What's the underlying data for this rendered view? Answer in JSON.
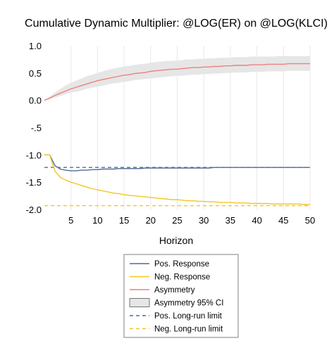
{
  "chart_data": {
    "type": "line",
    "title": "Cumulative Dynamic Multiplier: @LOG(ER) on @LOG(KLCI)",
    "xlabel": "Horizon",
    "ylabel": "",
    "xlim": [
      0,
      50
    ],
    "ylim": [
      -2.0,
      1.0
    ],
    "x_ticks": [
      5,
      10,
      15,
      20,
      25,
      30,
      35,
      40,
      45,
      50
    ],
    "y_ticks": [
      1.0,
      0.5,
      0.0,
      -0.5,
      -1.0,
      -1.5,
      -2.0
    ],
    "x_tick_labels": [
      "5",
      "10",
      "15",
      "20",
      "25",
      "30",
      "35",
      "40",
      "45",
      "50"
    ],
    "y_tick_labels": [
      "1.0",
      "0.5",
      "0.0",
      "-.5",
      "-1.0",
      "-1.5",
      "-2.0"
    ],
    "grid": "vertical",
    "legend": "bottom",
    "x": [
      0,
      1,
      2,
      3,
      4,
      5,
      6,
      7,
      8,
      9,
      10,
      11,
      12,
      13,
      14,
      15,
      16,
      17,
      18,
      19,
      20,
      21,
      22,
      23,
      24,
      25,
      26,
      27,
      28,
      29,
      30,
      31,
      32,
      33,
      34,
      35,
      36,
      37,
      38,
      39,
      40,
      41,
      42,
      43,
      44,
      45,
      46,
      47,
      48,
      49,
      50
    ],
    "series": [
      {
        "name": "Pos. Response",
        "kind": "line",
        "color": "#4f6c93",
        "values": [
          -1.0,
          -1.0,
          -1.2,
          -1.26,
          -1.28,
          -1.29,
          -1.29,
          -1.28,
          -1.28,
          -1.27,
          -1.27,
          -1.26,
          -1.26,
          -1.26,
          -1.25,
          -1.25,
          -1.25,
          -1.25,
          -1.25,
          -1.24,
          -1.24,
          -1.24,
          -1.24,
          -1.24,
          -1.24,
          -1.24,
          -1.24,
          -1.24,
          -1.24,
          -1.24,
          -1.24,
          -1.24,
          -1.23,
          -1.23,
          -1.23,
          -1.23,
          -1.23,
          -1.23,
          -1.23,
          -1.23,
          -1.23,
          -1.23,
          -1.23,
          -1.23,
          -1.23,
          -1.23,
          -1.23,
          -1.23,
          -1.23,
          -1.23,
          -1.23
        ]
      },
      {
        "name": "Neg. Response",
        "kind": "line",
        "color": "#f3c623",
        "values": [
          -1.0,
          -1.0,
          -1.3,
          -1.41,
          -1.46,
          -1.5,
          -1.53,
          -1.56,
          -1.59,
          -1.62,
          -1.64,
          -1.66,
          -1.68,
          -1.7,
          -1.71,
          -1.73,
          -1.74,
          -1.75,
          -1.76,
          -1.77,
          -1.78,
          -1.79,
          -1.8,
          -1.81,
          -1.82,
          -1.82,
          -1.83,
          -1.84,
          -1.84,
          -1.85,
          -1.85,
          -1.86,
          -1.86,
          -1.87,
          -1.87,
          -1.87,
          -1.88,
          -1.88,
          -1.88,
          -1.89,
          -1.89,
          -1.89,
          -1.89,
          -1.9,
          -1.9,
          -1.9,
          -1.9,
          -1.9,
          -1.9,
          -1.91,
          -1.91
        ]
      },
      {
        "name": "Asymmetry",
        "kind": "line",
        "color": "#ef7f7f",
        "values": [
          0.0,
          0.04,
          0.09,
          0.13,
          0.17,
          0.21,
          0.24,
          0.27,
          0.3,
          0.33,
          0.36,
          0.38,
          0.4,
          0.42,
          0.44,
          0.46,
          0.47,
          0.49,
          0.5,
          0.51,
          0.53,
          0.54,
          0.55,
          0.56,
          0.57,
          0.57,
          0.58,
          0.59,
          0.6,
          0.6,
          0.61,
          0.61,
          0.62,
          0.62,
          0.63,
          0.63,
          0.64,
          0.64,
          0.64,
          0.65,
          0.65,
          0.65,
          0.66,
          0.66,
          0.66,
          0.66,
          0.67,
          0.67,
          0.67,
          0.67,
          0.67
        ]
      },
      {
        "name": "Asymmetry 95% CI",
        "kind": "band",
        "color": "#e6e6e6",
        "lower": [
          0.0,
          0.02,
          0.05,
          0.08,
          0.11,
          0.14,
          0.16,
          0.18,
          0.21,
          0.23,
          0.25,
          0.27,
          0.29,
          0.31,
          0.32,
          0.34,
          0.35,
          0.37,
          0.38,
          0.39,
          0.4,
          0.41,
          0.42,
          0.43,
          0.44,
          0.45,
          0.45,
          0.46,
          0.47,
          0.47,
          0.48,
          0.48,
          0.49,
          0.49,
          0.5,
          0.5,
          0.51,
          0.51,
          0.51,
          0.52,
          0.52,
          0.52,
          0.53,
          0.53,
          0.53,
          0.53,
          0.54,
          0.54,
          0.54,
          0.54,
          0.54
        ],
        "upper": [
          0.0,
          0.07,
          0.14,
          0.21,
          0.27,
          0.32,
          0.36,
          0.4,
          0.44,
          0.47,
          0.5,
          0.53,
          0.56,
          0.58,
          0.6,
          0.62,
          0.63,
          0.65,
          0.66,
          0.67,
          0.69,
          0.7,
          0.71,
          0.72,
          0.72,
          0.73,
          0.74,
          0.75,
          0.75,
          0.76,
          0.76,
          0.77,
          0.77,
          0.78,
          0.78,
          0.78,
          0.79,
          0.79,
          0.79,
          0.8,
          0.8,
          0.8,
          0.8,
          0.8,
          0.81,
          0.81,
          0.81,
          0.81,
          0.81,
          0.81,
          0.81
        ]
      },
      {
        "name": "Pos. Long-run limit",
        "kind": "hline",
        "color": "#4f6c93",
        "dashed": true,
        "y": -1.23
      },
      {
        "name": "Neg. Long-run limit",
        "kind": "hline",
        "color": "#f3c623",
        "dashed": true,
        "y": -1.93
      }
    ]
  }
}
